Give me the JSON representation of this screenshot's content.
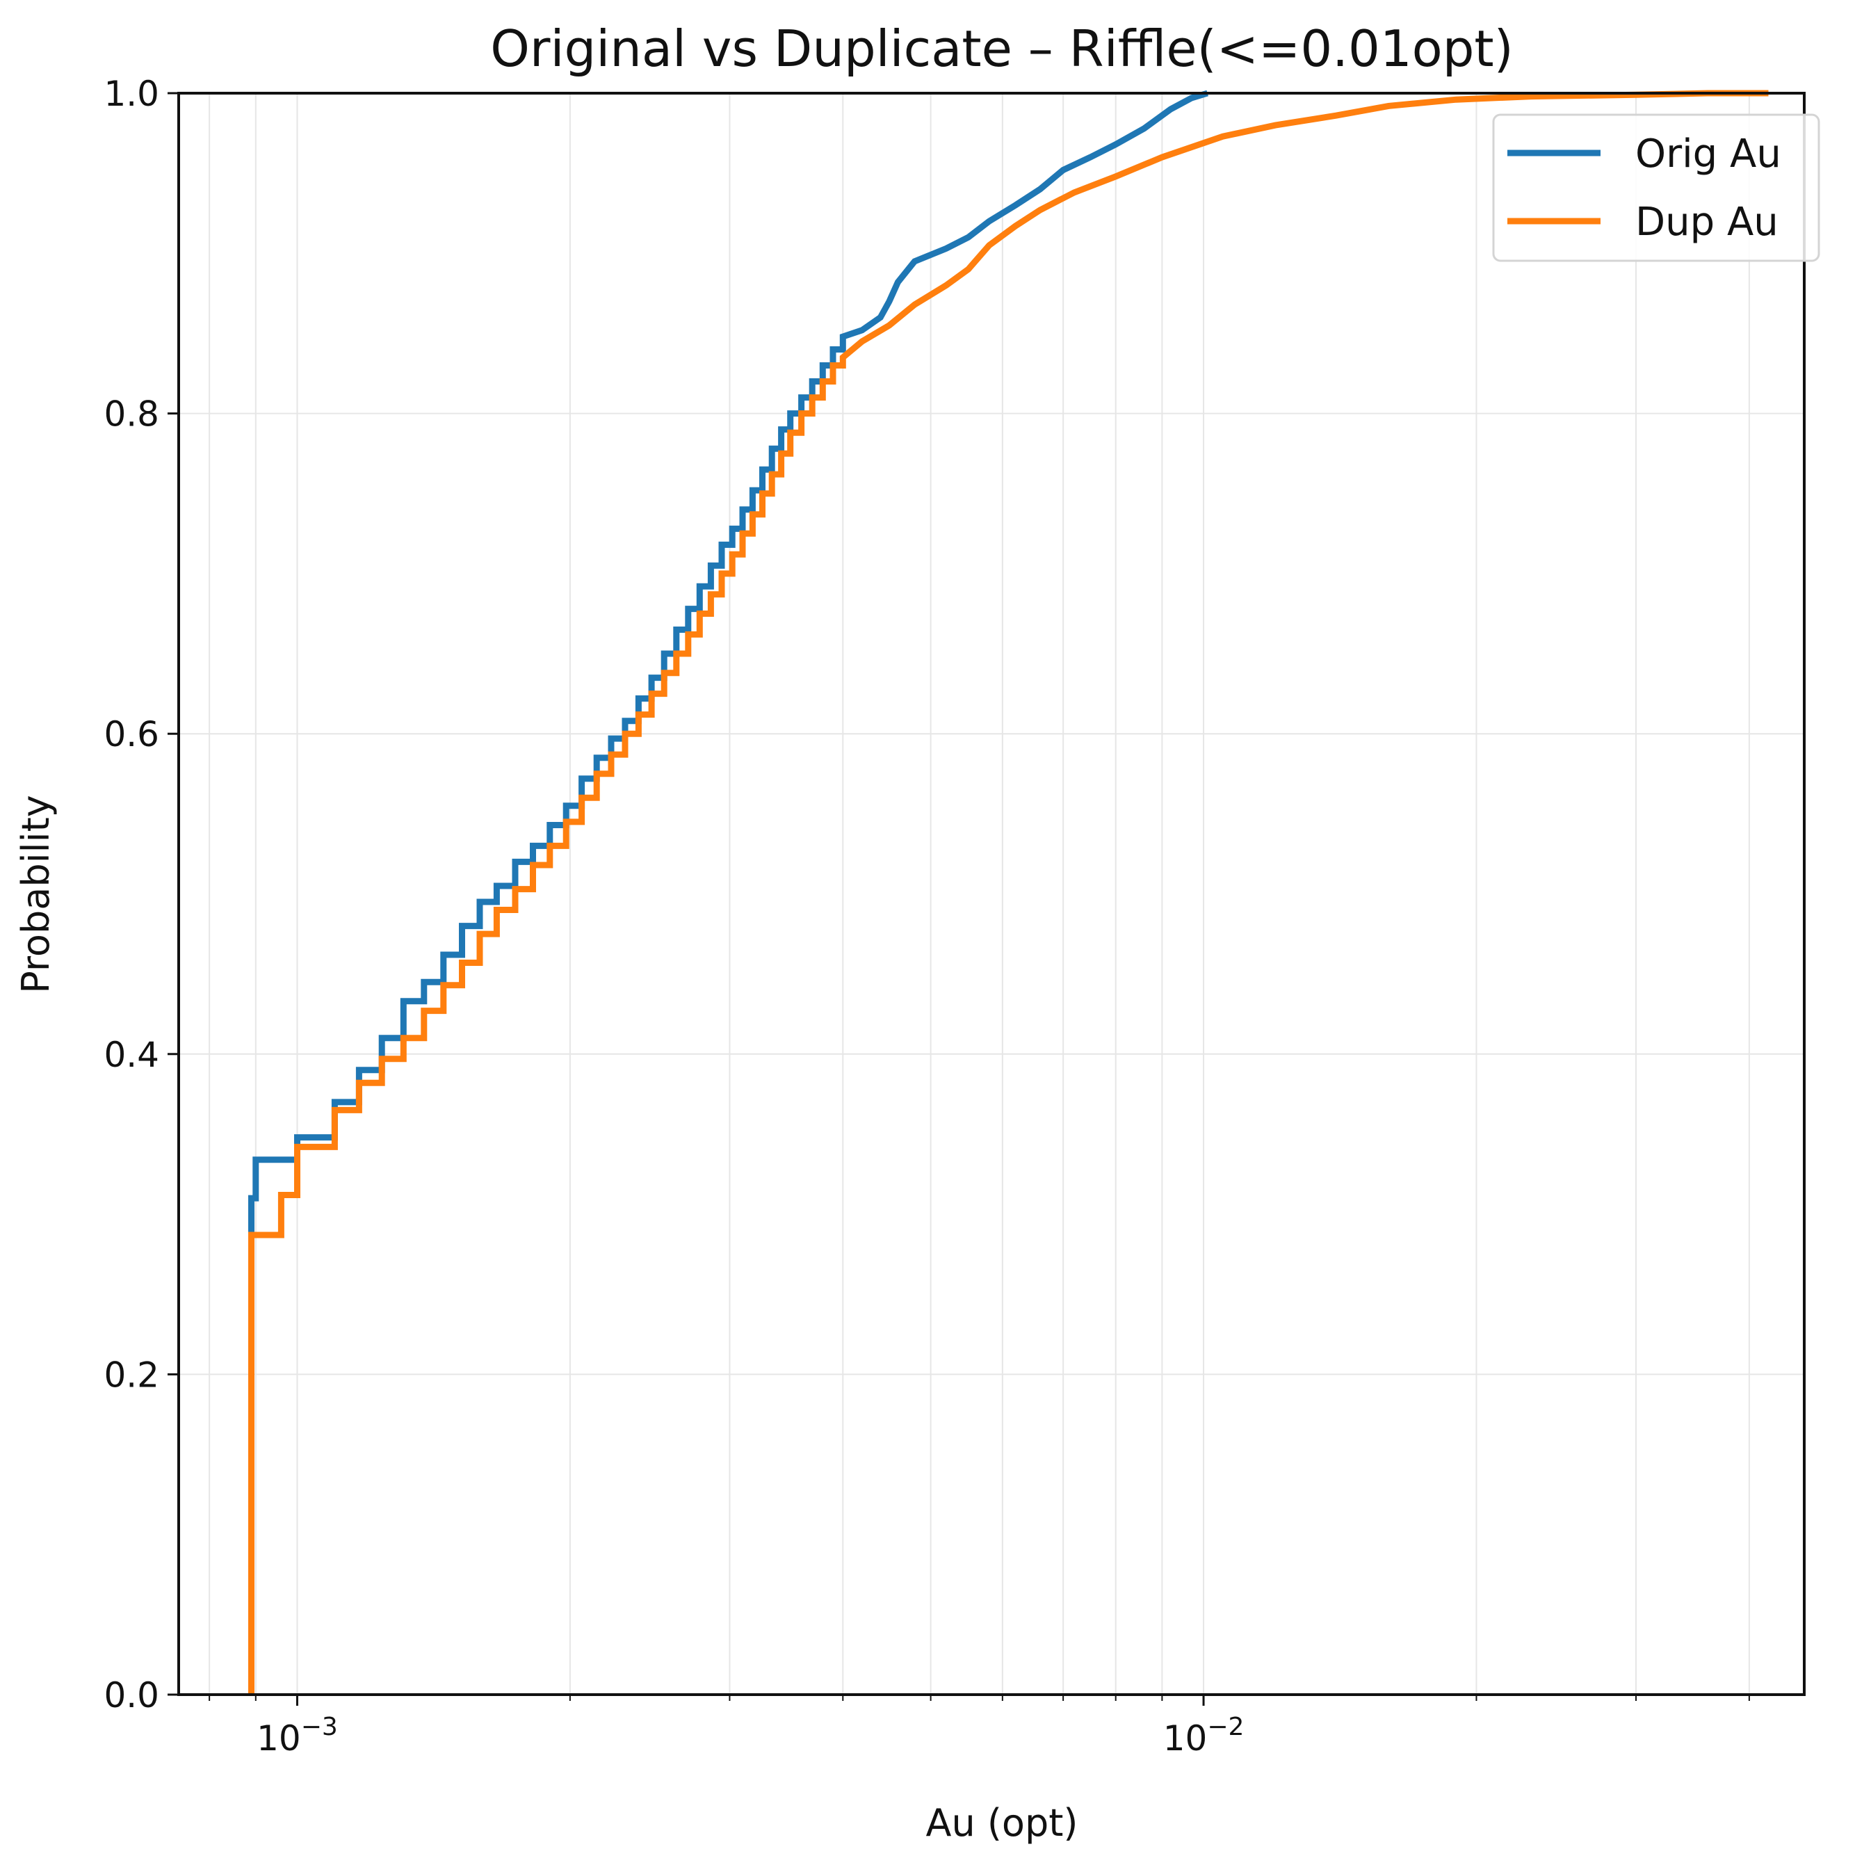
{
  "chart_data": {
    "type": "line",
    "title": "Original vs Duplicate – Riffle(<=0.01opt)",
    "xlabel": "Au (opt)",
    "ylabel": "Probability",
    "x_scale": "log",
    "xlim": [
      0.00074,
      0.046
    ],
    "ylim": [
      0,
      1.0
    ],
    "grid": true,
    "legend_position": "top-right",
    "x_ticks": [
      {
        "value": 0.001,
        "base": "10",
        "exponent": "−3"
      },
      {
        "value": 0.01,
        "base": "10",
        "exponent": "−2"
      }
    ],
    "y_ticks": [
      {
        "value": 0,
        "label": "0.0"
      },
      {
        "value": 0.2,
        "label": "0.2"
      },
      {
        "value": 0.4,
        "label": "0.4"
      },
      {
        "value": 0.6,
        "label": "0.6"
      },
      {
        "value": 0.8,
        "label": "0.8"
      },
      {
        "value": 1.0,
        "label": "1.0"
      }
    ],
    "series": [
      {
        "name": "Orig Au",
        "color": "#1f77b4",
        "step": true,
        "points": [
          [
            0.00089,
            0
          ],
          [
            0.00089,
            0.31
          ],
          [
            0.0009,
            0.31
          ],
          [
            0.0009,
            0.31
          ],
          [
            0.0009,
            0.334
          ],
          [
            0.001,
            0.334
          ],
          [
            0.001,
            0.348
          ],
          [
            0.0011,
            0.348
          ],
          [
            0.0011,
            0.37
          ],
          [
            0.00117,
            0.37
          ],
          [
            0.00117,
            0.39
          ],
          [
            0.00124,
            0.39
          ],
          [
            0.00124,
            0.41
          ],
          [
            0.00131,
            0.41
          ],
          [
            0.00131,
            0.433
          ],
          [
            0.00138,
            0.433
          ],
          [
            0.00138,
            0.445
          ],
          [
            0.00145,
            0.445
          ],
          [
            0.00145,
            0.462
          ],
          [
            0.00152,
            0.462
          ],
          [
            0.00152,
            0.48
          ],
          [
            0.00159,
            0.48
          ],
          [
            0.00159,
            0.495
          ],
          [
            0.00166,
            0.495
          ],
          [
            0.00166,
            0.505
          ],
          [
            0.00174,
            0.505
          ],
          [
            0.00174,
            0.52
          ],
          [
            0.00182,
            0.52
          ],
          [
            0.00182,
            0.53
          ],
          [
            0.0019,
            0.53
          ],
          [
            0.0019,
            0.543
          ],
          [
            0.00198,
            0.543
          ],
          [
            0.00198,
            0.555
          ],
          [
            0.00206,
            0.555
          ],
          [
            0.00206,
            0.572
          ],
          [
            0.00214,
            0.572
          ],
          [
            0.00214,
            0.585
          ],
          [
            0.00222,
            0.585
          ],
          [
            0.00222,
            0.597
          ],
          [
            0.0023,
            0.597
          ],
          [
            0.0023,
            0.608
          ],
          [
            0.00238,
            0.608
          ],
          [
            0.00238,
            0.622
          ],
          [
            0.00246,
            0.622
          ],
          [
            0.00246,
            0.635
          ],
          [
            0.00254,
            0.635
          ],
          [
            0.00254,
            0.65
          ],
          [
            0.00262,
            0.65
          ],
          [
            0.00262,
            0.665
          ],
          [
            0.0027,
            0.665
          ],
          [
            0.0027,
            0.678
          ],
          [
            0.00278,
            0.678
          ],
          [
            0.00278,
            0.692
          ],
          [
            0.00286,
            0.692
          ],
          [
            0.00286,
            0.705
          ],
          [
            0.00294,
            0.705
          ],
          [
            0.00294,
            0.718
          ],
          [
            0.00302,
            0.718
          ],
          [
            0.00302,
            0.728
          ],
          [
            0.0031,
            0.728
          ],
          [
            0.0031,
            0.74
          ],
          [
            0.00318,
            0.74
          ],
          [
            0.00318,
            0.752
          ],
          [
            0.00326,
            0.752
          ],
          [
            0.00326,
            0.765
          ],
          [
            0.00334,
            0.765
          ],
          [
            0.00334,
            0.778
          ],
          [
            0.00342,
            0.778
          ],
          [
            0.00342,
            0.79
          ],
          [
            0.0035,
            0.79
          ],
          [
            0.0035,
            0.8
          ],
          [
            0.0036,
            0.8
          ],
          [
            0.0036,
            0.81
          ],
          [
            0.0037,
            0.81
          ],
          [
            0.0037,
            0.82
          ],
          [
            0.0038,
            0.82
          ],
          [
            0.0038,
            0.83
          ],
          [
            0.0039,
            0.83
          ],
          [
            0.0039,
            0.84
          ],
          [
            0.004,
            0.84
          ],
          [
            0.004,
            0.848
          ],
          [
            0.0042,
            0.852
          ],
          [
            0.0044,
            0.86
          ],
          [
            0.0045,
            0.87
          ],
          [
            0.0046,
            0.882
          ],
          [
            0.0048,
            0.895
          ],
          [
            0.0052,
            0.903
          ],
          [
            0.0055,
            0.91
          ],
          [
            0.0058,
            0.92
          ],
          [
            0.0062,
            0.93
          ],
          [
            0.0066,
            0.94
          ],
          [
            0.007,
            0.952
          ],
          [
            0.0075,
            0.96
          ],
          [
            0.008,
            0.968
          ],
          [
            0.0086,
            0.978
          ],
          [
            0.0092,
            0.99
          ],
          [
            0.0097,
            0.997
          ],
          [
            0.0101,
            1.0
          ]
        ]
      },
      {
        "name": "Dup Au",
        "color": "#ff7f0e",
        "step": true,
        "points": [
          [
            0.00089,
            0
          ],
          [
            0.00089,
            0.287
          ],
          [
            0.00096,
            0.287
          ],
          [
            0.00096,
            0.312
          ],
          [
            0.001,
            0.312
          ],
          [
            0.001,
            0.342
          ],
          [
            0.0011,
            0.342
          ],
          [
            0.0011,
            0.365
          ],
          [
            0.00117,
            0.365
          ],
          [
            0.00117,
            0.382
          ],
          [
            0.00124,
            0.382
          ],
          [
            0.00124,
            0.397
          ],
          [
            0.00131,
            0.397
          ],
          [
            0.00131,
            0.41
          ],
          [
            0.00138,
            0.41
          ],
          [
            0.00138,
            0.427
          ],
          [
            0.00145,
            0.427
          ],
          [
            0.00145,
            0.443
          ],
          [
            0.00152,
            0.443
          ],
          [
            0.00152,
            0.457
          ],
          [
            0.00159,
            0.457
          ],
          [
            0.00159,
            0.475
          ],
          [
            0.00166,
            0.475
          ],
          [
            0.00166,
            0.49
          ],
          [
            0.00174,
            0.49
          ],
          [
            0.00174,
            0.503
          ],
          [
            0.00182,
            0.503
          ],
          [
            0.00182,
            0.518
          ],
          [
            0.0019,
            0.518
          ],
          [
            0.0019,
            0.53
          ],
          [
            0.00198,
            0.53
          ],
          [
            0.00198,
            0.545
          ],
          [
            0.00206,
            0.545
          ],
          [
            0.00206,
            0.56
          ],
          [
            0.00214,
            0.56
          ],
          [
            0.00214,
            0.575
          ],
          [
            0.00222,
            0.575
          ],
          [
            0.00222,
            0.587
          ],
          [
            0.0023,
            0.587
          ],
          [
            0.0023,
            0.6
          ],
          [
            0.00238,
            0.6
          ],
          [
            0.00238,
            0.612
          ],
          [
            0.00246,
            0.612
          ],
          [
            0.00246,
            0.625
          ],
          [
            0.00254,
            0.625
          ],
          [
            0.00254,
            0.638
          ],
          [
            0.00262,
            0.638
          ],
          [
            0.00262,
            0.65
          ],
          [
            0.0027,
            0.65
          ],
          [
            0.0027,
            0.662
          ],
          [
            0.00278,
            0.662
          ],
          [
            0.00278,
            0.675
          ],
          [
            0.00286,
            0.675
          ],
          [
            0.00286,
            0.687
          ],
          [
            0.00294,
            0.687
          ],
          [
            0.00294,
            0.7
          ],
          [
            0.00302,
            0.7
          ],
          [
            0.00302,
            0.712
          ],
          [
            0.0031,
            0.712
          ],
          [
            0.0031,
            0.725
          ],
          [
            0.00318,
            0.725
          ],
          [
            0.00318,
            0.737
          ],
          [
            0.00326,
            0.737
          ],
          [
            0.00326,
            0.75
          ],
          [
            0.00334,
            0.75
          ],
          [
            0.00334,
            0.762
          ],
          [
            0.00342,
            0.762
          ],
          [
            0.00342,
            0.775
          ],
          [
            0.0035,
            0.775
          ],
          [
            0.0035,
            0.788
          ],
          [
            0.0036,
            0.788
          ],
          [
            0.0036,
            0.8
          ],
          [
            0.0037,
            0.8
          ],
          [
            0.0037,
            0.81
          ],
          [
            0.0038,
            0.81
          ],
          [
            0.0038,
            0.82
          ],
          [
            0.0039,
            0.82
          ],
          [
            0.0039,
            0.83
          ],
          [
            0.004,
            0.83
          ],
          [
            0.004,
            0.835
          ],
          [
            0.0042,
            0.845
          ],
          [
            0.0045,
            0.855
          ],
          [
            0.0048,
            0.868
          ],
          [
            0.0052,
            0.88
          ],
          [
            0.0055,
            0.89
          ],
          [
            0.0058,
            0.905
          ],
          [
            0.0062,
            0.917
          ],
          [
            0.0066,
            0.927
          ],
          [
            0.0072,
            0.938
          ],
          [
            0.008,
            0.948
          ],
          [
            0.009,
            0.96
          ],
          [
            0.0105,
            0.973
          ],
          [
            0.012,
            0.98
          ],
          [
            0.014,
            0.986
          ],
          [
            0.016,
            0.992
          ],
          [
            0.019,
            0.996
          ],
          [
            0.023,
            0.998
          ],
          [
            0.03,
            0.999
          ],
          [
            0.036,
            1.0
          ],
          [
            0.042,
            1.0
          ]
        ]
      }
    ]
  }
}
